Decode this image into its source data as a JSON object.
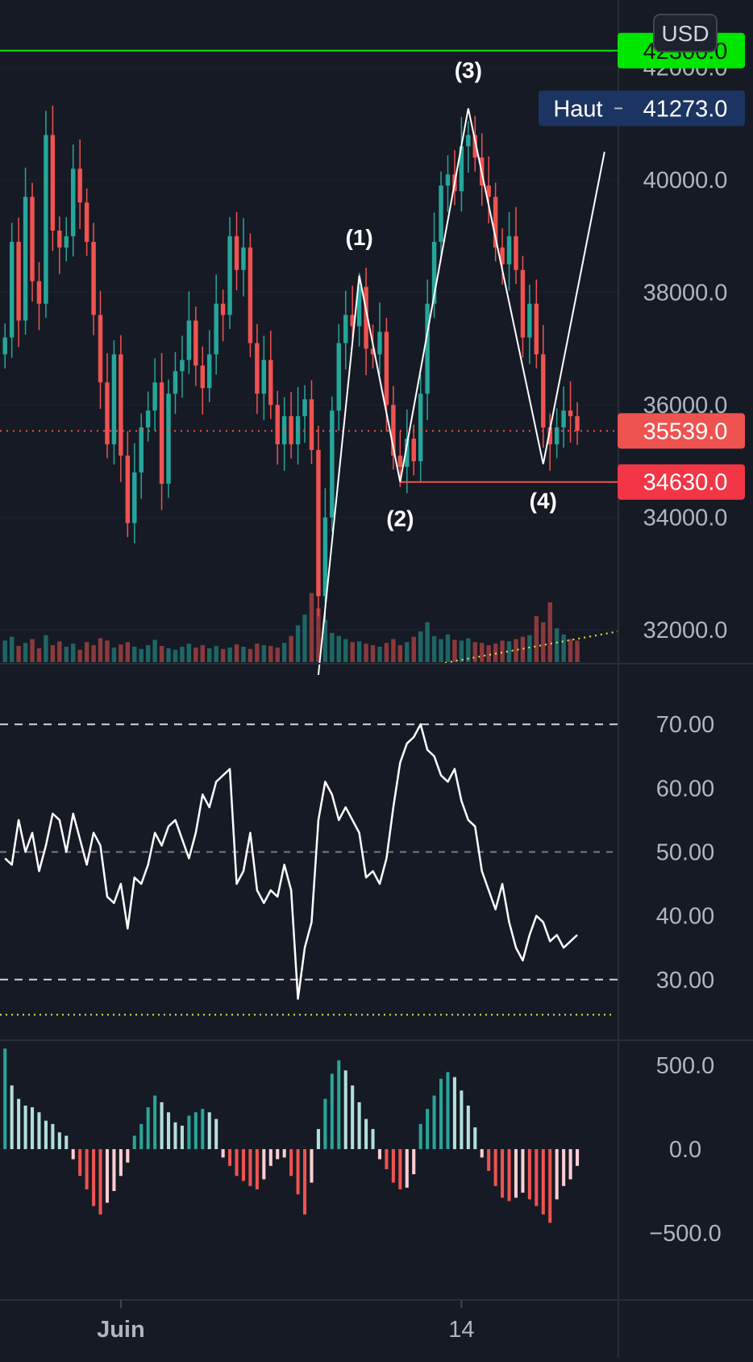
{
  "colors": {
    "background": "#161a25",
    "axis_text": "#b2b5be",
    "up": "#26a69a",
    "down": "#ef5350",
    "target": "#00e600",
    "high_badge": "#1c3461",
    "last_badge": "#ef5350",
    "white": "#ffffff",
    "yellow": "#e8e84a"
  },
  "toolbar": {
    "currency": "USD"
  },
  "chart_data": [
    {
      "type": "candlestick",
      "panel": "price",
      "currency": "USD",
      "y_ticks": [
        "42000.0",
        "40000.0",
        "38000.0",
        "36000.0",
        "34000.0",
        "32000.0"
      ],
      "ylim": [
        31400,
        43200
      ],
      "target_level": {
        "value": "42300.0",
        "price": 42300
      },
      "high_level": {
        "label": "Haut",
        "value": "41273.0",
        "price": 41273
      },
      "last_price": {
        "value": "35539.0",
        "price": 35539
      },
      "support_level": {
        "value": "34630.0",
        "price": 34630
      },
      "wave_labels": [
        {
          "label": "(1)",
          "bar": 52,
          "price": 38300
        },
        {
          "label": "(2)",
          "bar": 58,
          "price": 34630
        },
        {
          "label": "(3)",
          "bar": 68,
          "price": 41273
        },
        {
          "label": "(4)",
          "bar": 79,
          "price": 34950
        }
      ],
      "wave_path": [
        {
          "bar": 46,
          "price": 31200
        },
        {
          "bar": 52,
          "price": 38300
        },
        {
          "bar": 58,
          "price": 34630
        },
        {
          "bar": 68,
          "price": 41273
        },
        {
          "bar": 79,
          "price": 34950
        },
        {
          "bar": 88,
          "price": 40500
        }
      ],
      "closes": [
        37200,
        38900,
        37500,
        39700,
        38200,
        37800,
        40800,
        39100,
        38800,
        39000,
        40200,
        39600,
        38900,
        37600,
        36400,
        35300,
        36900,
        35100,
        33900,
        34800,
        35600,
        35900,
        36400,
        34600,
        36200,
        36600,
        36800,
        37500,
        36700,
        36300,
        36900,
        37800,
        37600,
        39000,
        38400,
        38800,
        37100,
        36200,
        36800,
        36000,
        35300,
        35800,
        35300,
        35800,
        36100,
        35200,
        32600,
        34000,
        35900,
        37100,
        37600,
        37400,
        38100,
        37000,
        36900,
        37300,
        36000,
        35100,
        34900,
        35400,
        35000,
        36200,
        37800,
        38900,
        39900,
        40100,
        39800,
        40600,
        40800,
        40400,
        39900,
        39700,
        38800,
        38500,
        39000,
        38400,
        37200,
        37800,
        36900,
        35600,
        35300,
        35600,
        35900,
        35800,
        35539
      ],
      "volumes": [
        0.28,
        0.33,
        0.21,
        0.25,
        0.3,
        0.18,
        0.35,
        0.22,
        0.27,
        0.2,
        0.24,
        0.16,
        0.26,
        0.22,
        0.31,
        0.28,
        0.19,
        0.23,
        0.26,
        0.2,
        0.17,
        0.22,
        0.29,
        0.21,
        0.18,
        0.16,
        0.2,
        0.24,
        0.19,
        0.22,
        0.18,
        0.21,
        0.17,
        0.19,
        0.23,
        0.2,
        0.17,
        0.24,
        0.22,
        0.21,
        0.19,
        0.25,
        0.34,
        0.48,
        0.62,
        0.9,
        0.7,
        0.55,
        0.38,
        0.34,
        0.3,
        0.26,
        0.27,
        0.24,
        0.22,
        0.2,
        0.25,
        0.3,
        0.22,
        0.26,
        0.33,
        0.4,
        0.52,
        0.34,
        0.3,
        0.36,
        0.29,
        0.28,
        0.31,
        0.26,
        0.25,
        0.22,
        0.24,
        0.28,
        0.27,
        0.3,
        0.33,
        0.35,
        0.6,
        0.52,
        0.78,
        0.44,
        0.36,
        0.3,
        0.28
      ]
    },
    {
      "type": "line",
      "panel": "oscillator",
      "y_ticks": [
        "70.00",
        "60.00",
        "50.00",
        "40.00",
        "30.00"
      ],
      "ylim": [
        20.5,
        79.5
      ],
      "bands": [
        70,
        50,
        30
      ],
      "values": [
        49,
        48,
        55,
        50,
        53,
        47,
        51,
        56,
        55,
        50,
        56,
        52,
        48,
        53,
        51,
        43,
        42,
        45,
        38,
        46,
        45,
        48,
        53,
        51,
        54,
        55,
        52,
        49,
        53,
        59,
        57,
        61,
        62,
        63,
        45,
        47,
        53,
        44,
        42,
        44,
        43,
        48,
        44,
        27,
        35,
        39,
        55,
        61,
        59,
        55,
        57,
        55,
        53,
        46,
        47,
        45,
        49,
        57,
        64,
        67,
        68,
        70,
        66,
        65,
        62,
        61,
        63,
        58,
        55,
        54,
        47,
        44,
        41,
        45,
        39,
        35,
        33,
        37,
        40,
        39,
        36,
        37,
        35,
        36,
        37
      ]
    },
    {
      "type": "histogram",
      "panel": "momentum",
      "y_ticks": [
        "500.0",
        "0.0",
        "−500.0"
      ],
      "ylim": [
        -900,
        650
      ],
      "values": [
        600,
        380,
        300,
        260,
        250,
        220,
        170,
        150,
        100,
        80,
        -60,
        -160,
        -240,
        -340,
        -390,
        -320,
        -250,
        -160,
        -80,
        80,
        150,
        250,
        320,
        280,
        220,
        160,
        140,
        200,
        220,
        240,
        220,
        180,
        -50,
        -100,
        -160,
        -190,
        -220,
        -240,
        -180,
        -100,
        -60,
        -50,
        -160,
        -270,
        -390,
        -200,
        120,
        300,
        450,
        530,
        470,
        380,
        280,
        180,
        120,
        -60,
        -120,
        -200,
        -240,
        -230,
        -150,
        150,
        240,
        320,
        420,
        460,
        430,
        350,
        260,
        130,
        -50,
        -130,
        -220,
        -290,
        -310,
        -290,
        -260,
        -300,
        -340,
        -390,
        -440,
        -300,
        -220,
        -180,
        -100
      ],
      "x_ticks": [
        {
          "label": "Juin",
          "bar": 17
        },
        {
          "label": "14",
          "bar": 67
        }
      ]
    }
  ]
}
